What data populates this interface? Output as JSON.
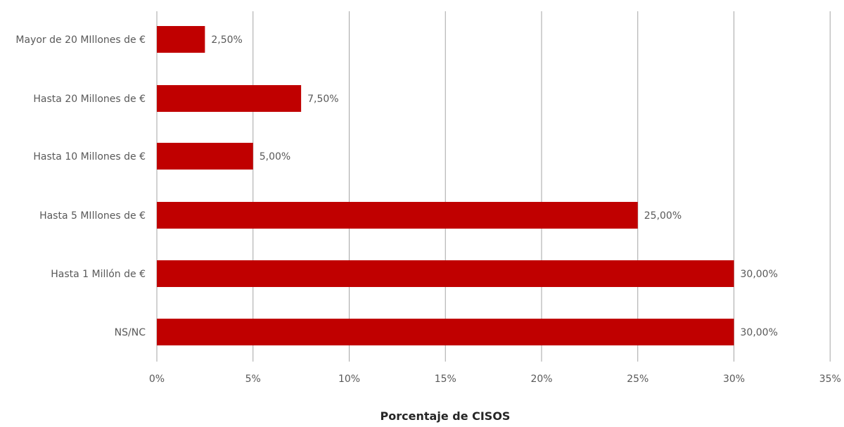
{
  "chart_data": {
    "type": "bar",
    "orientation": "horizontal",
    "categories": [
      "Mayor de 20 MIllones de €",
      "Hasta 20 Millones de €",
      "Hasta 10 Millones de €",
      "Hasta 5 MIllones de €",
      "Hasta 1 Millón de €",
      "NS/NC"
    ],
    "values": [
      2.5,
      7.5,
      5.0,
      25.0,
      30.0,
      30.0
    ],
    "data_labels": [
      "2,50%",
      "7,50%",
      "5,00%",
      "25,00%",
      "30,00%",
      "30,00%"
    ],
    "x_ticks": [
      0,
      5,
      10,
      15,
      20,
      25,
      30,
      35
    ],
    "x_tick_labels": [
      "0%",
      "5%",
      "10%",
      "15%",
      "20%",
      "25%",
      "30%",
      "35%"
    ],
    "xlim": [
      0,
      35
    ],
    "xlabel": "Porcentaje de CISOS",
    "ylabel": "",
    "title": "",
    "grid": "vertical",
    "legend": "none",
    "colors": {
      "bar": "#c00000",
      "grid": "#a6a6a6",
      "text": "#595959",
      "axis_title": "#262626"
    }
  }
}
